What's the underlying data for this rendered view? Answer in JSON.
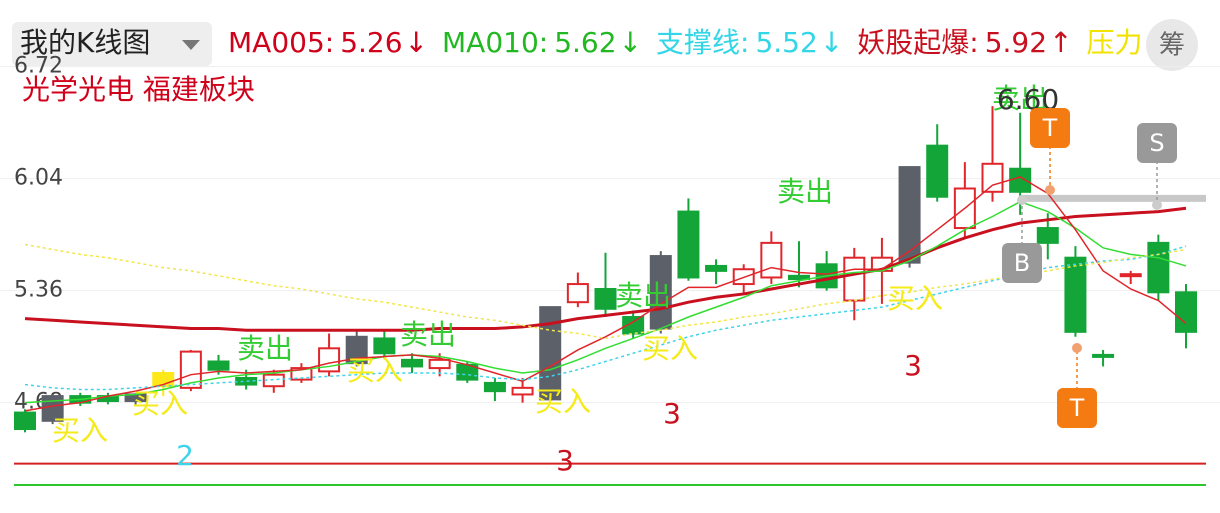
{
  "header": {
    "title": "我的K线图",
    "indicators": [
      {
        "name": "MA005:",
        "value": 5.26,
        "arrow": "↓",
        "color": "#d0021b"
      },
      {
        "name": "MA010:",
        "value": 5.62,
        "arrow": "↓",
        "color": "#22b822"
      },
      {
        "name": "支撑线:",
        "value": 5.52,
        "arrow": "↓",
        "color": "#33d6e6"
      },
      {
        "name": "妖股起爆:",
        "value": 5.92,
        "arrow": "↑",
        "color": "#c8101e"
      },
      {
        "name": "压力",
        "color": "#f2e200"
      }
    ],
    "button": "筹"
  },
  "chart_data": {
    "type": "candlestick",
    "subtitle": "光学光电 福建板块",
    "ylim": [
      4.15,
      6.76
    ],
    "yticks": [
      6.72,
      6.04,
      5.36,
      4.68
    ],
    "grid": true,
    "up_color": "#e0262b",
    "down_color": "#13a538",
    "gray_color": "#5c6068",
    "gray_indices": [
      1,
      4,
      12,
      19,
      23,
      32
    ],
    "yellow_color": "#ffe81a",
    "yellow_indices": [
      5
    ],
    "open": [
      4.62,
      4.72,
      4.72,
      4.72,
      4.73,
      4.78,
      4.77,
      4.93,
      4.83,
      4.78,
      4.82,
      4.87,
      5.08,
      5.07,
      4.94,
      4.89,
      4.91,
      4.8,
      4.73,
      4.7,
      5.29,
      5.37,
      5.2,
      5.13,
      5.84,
      5.51,
      5.4,
      5.44,
      5.45,
      5.52,
      5.3,
      5.48,
      5.53,
      6.24,
      5.74,
      5.96,
      6.1,
      5.74,
      5.56,
      4.97,
      5.46,
      5.65,
      5.35
    ],
    "high": [
      4.64,
      4.73,
      4.74,
      4.74,
      4.74,
      4.88,
      5.0,
      4.97,
      4.88,
      4.88,
      4.92,
      5.1,
      5.12,
      5.12,
      4.98,
      4.98,
      4.93,
      4.83,
      4.83,
      5.26,
      5.47,
      5.59,
      5.24,
      5.6,
      5.92,
      5.55,
      5.52,
      5.72,
      5.66,
      5.6,
      5.62,
      5.68,
      6.11,
      6.37,
      6.14,
      6.48,
      6.44,
      5.83,
      5.63,
      5.0,
      5.48,
      5.7,
      5.4
    ],
    "low": [
      4.5,
      4.55,
      4.66,
      4.67,
      4.67,
      4.72,
      4.75,
      4.85,
      4.76,
      4.74,
      4.8,
      4.84,
      4.9,
      4.95,
      4.86,
      4.84,
      4.8,
      4.69,
      4.68,
      4.69,
      5.26,
      5.2,
      5.07,
      5.1,
      5.42,
      5.4,
      5.34,
      5.4,
      5.38,
      5.36,
      5.18,
      5.28,
      5.5,
      5.9,
      5.68,
      5.9,
      5.82,
      5.55,
      5.08,
      4.9,
      5.4,
      5.3,
      5.01
    ],
    "close": [
      4.52,
      4.57,
      4.68,
      4.69,
      4.69,
      4.86,
      4.99,
      4.88,
      4.79,
      4.85,
      4.89,
      5.01,
      4.92,
      4.98,
      4.9,
      4.94,
      4.82,
      4.75,
      4.77,
      5.26,
      5.4,
      5.25,
      5.1,
      5.57,
      5.44,
      5.48,
      5.49,
      5.65,
      5.43,
      5.38,
      5.56,
      5.56,
      6.11,
      5.93,
      5.98,
      6.13,
      5.96,
      5.65,
      5.11,
      4.96,
      5.46,
      5.35,
      5.11
    ],
    "series": [
      {
        "color": "#c8101e",
        "width": 3,
        "values": [
          5.19,
          5.18,
          5.17,
          5.16,
          5.15,
          5.14,
          5.13,
          5.13,
          5.12,
          5.12,
          5.12,
          5.12,
          5.12,
          5.12,
          5.12,
          5.13,
          5.13,
          5.13,
          5.14,
          5.16,
          5.19,
          5.21,
          5.23,
          5.25,
          5.29,
          5.32,
          5.34,
          5.37,
          5.4,
          5.43,
          5.46,
          5.49,
          5.55,
          5.62,
          5.68,
          5.73,
          5.77,
          5.79,
          5.81,
          5.82,
          5.83,
          5.84,
          5.86
        ]
      },
      {
        "color": "#33dd33",
        "width": 1.5,
        "values": [
          4.68,
          4.69,
          4.7,
          4.72,
          4.73,
          4.76,
          4.8,
          4.83,
          4.85,
          4.86,
          4.88,
          4.9,
          4.93,
          4.96,
          4.97,
          4.96,
          4.93,
          4.89,
          4.86,
          4.88,
          4.94,
          5.01,
          5.07,
          5.13,
          5.2,
          5.26,
          5.32,
          5.39,
          5.42,
          5.45,
          5.47,
          5.48,
          5.54,
          5.63,
          5.73,
          5.81,
          5.9,
          5.84,
          5.74,
          5.62,
          5.58,
          5.56,
          5.51
        ]
      },
      {
        "color": "#e0262b",
        "width": 1.5,
        "values": [
          4.63,
          4.66,
          4.68,
          4.72,
          4.75,
          4.79,
          4.85,
          4.87,
          4.86,
          4.87,
          4.88,
          4.92,
          4.95,
          4.96,
          4.97,
          4.95,
          4.91,
          4.86,
          4.81,
          4.9,
          5.0,
          5.08,
          5.17,
          5.28,
          5.38,
          5.38,
          5.44,
          5.5,
          5.47,
          5.46,
          5.49,
          5.49,
          5.6,
          5.73,
          5.86,
          6.0,
          6.05,
          5.95,
          5.73,
          5.48,
          5.37,
          5.3,
          5.16
        ]
      },
      {
        "color": "#3fd3e8",
        "width": 1.5,
        "dashed": true,
        "values": [
          4.79,
          4.77,
          4.76,
          4.76,
          4.77,
          4.78,
          4.79,
          4.8,
          4.81,
          4.82,
          4.83,
          4.84,
          4.85,
          4.86,
          4.86,
          4.86,
          4.85,
          4.83,
          4.82,
          4.84,
          4.88,
          4.93,
          4.98,
          5.03,
          5.08,
          5.12,
          5.15,
          5.18,
          5.2,
          5.22,
          5.24,
          5.26,
          5.3,
          5.34,
          5.38,
          5.42,
          5.46,
          5.5,
          5.52,
          5.54,
          5.55,
          5.58,
          5.63
        ]
      },
      {
        "color": "#f2e64a",
        "width": 1.5,
        "dashed": true,
        "values": [
          5.64,
          5.61,
          5.58,
          5.56,
          5.53,
          5.5,
          5.48,
          5.45,
          5.42,
          5.39,
          5.37,
          5.34,
          5.31,
          5.29,
          5.26,
          5.23,
          5.2,
          5.18,
          5.15,
          5.12,
          5.1,
          5.07,
          5.1,
          5.12,
          5.15,
          5.17,
          5.2,
          5.22,
          5.25,
          5.28,
          5.3,
          5.33,
          5.35,
          5.38,
          5.4,
          5.43,
          5.45,
          5.48,
          5.51,
          5.53,
          5.56,
          5.58,
          5.61
        ]
      }
    ],
    "hlines": [
      {
        "value": 4.31,
        "color": "#d42020"
      },
      {
        "value": 4.18,
        "color": "#2ec42e"
      },
      {
        "value": 5.92,
        "color": "#c8c8c8"
      }
    ],
    "annotations": [
      "买入",
      "买入",
      "买入",
      "买入",
      "买入",
      "买入",
      "卖出",
      "卖出",
      "卖出",
      "卖出",
      "卖出",
      "2",
      "3",
      "3",
      "3",
      "6.60"
    ],
    "badges": [
      "T",
      "T",
      "S",
      "B"
    ]
  }
}
